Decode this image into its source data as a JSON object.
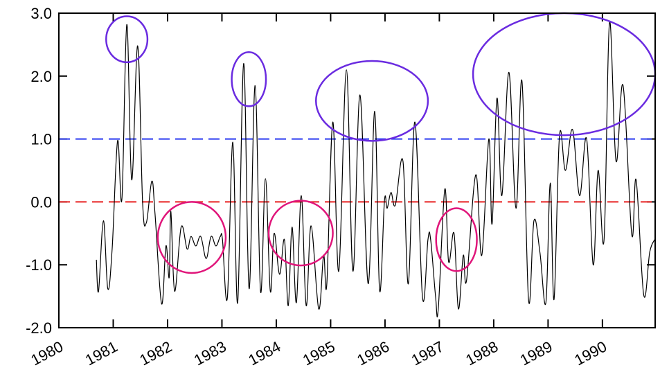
{
  "chart_data": {
    "type": "line",
    "x": [
      1980.69,
      1980.73,
      1980.82,
      1980.9,
      1980.98,
      1981.08,
      1981.16,
      1981.25,
      1981.34,
      1981.45,
      1981.54,
      1981.61,
      1981.71,
      1981.77,
      1981.89,
      1981.97,
      1982.03,
      1982.06,
      1982.13,
      1982.25,
      1982.36,
      1982.43,
      1982.52,
      1982.61,
      1982.71,
      1982.8,
      1982.89,
      1982.97,
      1983.01,
      1983.1,
      1983.2,
      1983.29,
      1983.4,
      1983.5,
      1983.61,
      1983.71,
      1983.8,
      1983.89,
      1983.96,
      1984.06,
      1984.15,
      1984.22,
      1984.29,
      1984.37,
      1984.46,
      1984.55,
      1984.64,
      1984.78,
      1984.87,
      1984.93,
      1985.04,
      1985.15,
      1985.29,
      1985.41,
      1985.54,
      1985.69,
      1985.81,
      1985.9,
      1985.99,
      1986.04,
      1986.11,
      1986.19,
      1986.33,
      1986.43,
      1986.55,
      1986.69,
      1986.79,
      1986.84,
      1986.93,
      1986.98,
      1987.1,
      1987.17,
      1987.27,
      1987.35,
      1987.44,
      1987.5,
      1987.67,
      1987.78,
      1987.91,
      1987.97,
      1988.06,
      1988.15,
      1988.28,
      1988.41,
      1988.52,
      1988.64,
      1988.74,
      1988.85,
      1988.96,
      1989.04,
      1989.11,
      1989.21,
      1989.32,
      1989.45,
      1989.58,
      1989.71,
      1989.83,
      1989.92,
      1990.03,
      1990.13,
      1990.25,
      1990.38,
      1990.54,
      1990.62,
      1990.76,
      1990.87,
      1990.96
    ],
    "series": [
      {
        "color": "#000000",
        "values": [
          -0.92,
          -1.42,
          -0.3,
          -1.38,
          -0.75,
          0.97,
          0.05,
          2.82,
          0.35,
          2.48,
          0.0,
          -0.33,
          0.33,
          -0.2,
          -1.62,
          -0.7,
          -1.2,
          -0.15,
          -1.42,
          -0.4,
          -0.75,
          -0.55,
          -0.7,
          -0.55,
          -0.9,
          -0.55,
          -0.7,
          -0.55,
          -0.6,
          -1.52,
          0.95,
          -1.6,
          2.2,
          -1.38,
          1.85,
          -1.42,
          0.37,
          -1.42,
          -0.5,
          -1.15,
          -0.6,
          -1.65,
          -0.4,
          -1.6,
          0.1,
          -1.65,
          -0.38,
          -1.7,
          -0.85,
          -1.3,
          1.27,
          -1.1,
          2.1,
          -1.1,
          1.7,
          -1.3,
          1.44,
          -1.4,
          0.02,
          -0.1,
          0.15,
          -0.05,
          0.65,
          -1.3,
          1.27,
          -1.52,
          -0.6,
          -0.6,
          -1.5,
          -1.7,
          0.2,
          -0.95,
          -0.5,
          -1.7,
          -0.85,
          -1.25,
          0.43,
          -0.85,
          1.0,
          -0.35,
          1.65,
          0.1,
          2.06,
          -0.1,
          1.92,
          -1.55,
          -0.3,
          -0.8,
          -1.6,
          0.3,
          -1.55,
          1.05,
          0.5,
          1.15,
          0.1,
          1.0,
          -1.0,
          0.5,
          -0.6,
          2.85,
          0.65,
          1.85,
          -0.52,
          0.35,
          -1.48,
          -0.8,
          -0.6
        ]
      }
    ],
    "xlim": [
      1980,
      1990.97
    ],
    "xticks": [
      1980,
      1981,
      1982,
      1983,
      1984,
      1985,
      1986,
      1987,
      1988,
      1989,
      1990
    ],
    "ylim": [
      -2,
      3
    ],
    "yticks": [
      {
        "value": -2,
        "label": "-2.0"
      },
      {
        "value": -1,
        "label": "-1.0"
      },
      {
        "value": 0,
        "label": "0.0"
      },
      {
        "value": 1,
        "label": "1.0"
      },
      {
        "value": 2,
        "label": "2.0"
      },
      {
        "value": 3,
        "label": "3.0"
      }
    ],
    "hlines": [
      {
        "y": 1,
        "color": "#2b3bf0"
      },
      {
        "y": 0,
        "color": "#e82020"
      }
    ],
    "highlights": [
      {
        "xlim": [
          1980.87,
          1981.63
        ],
        "ylim": [
          2.22,
          2.95
        ],
        "color": "#6a2be0"
      },
      {
        "xlim": [
          1983.18,
          1983.81
        ],
        "ylim": [
          1.52,
          2.38
        ],
        "color": "#6a2be0"
      },
      {
        "xlim": [
          1984.73,
          1986.79
        ],
        "ylim": [
          0.97,
          2.24
        ],
        "color": "#6a2be0"
      },
      {
        "xlim": [
          1987.62,
          1990.97
        ],
        "ylim": [
          1.06,
          3.0
        ],
        "color": "#6a2be0"
      },
      {
        "xlim": [
          1981.82,
          1983.07
        ],
        "ylim": [
          -1.13,
          0.0
        ],
        "color": "#e0157a"
      },
      {
        "xlim": [
          1983.86,
          1985.04
        ],
        "ylim": [
          -1.01,
          0.02
        ],
        "color": "#e0157a"
      },
      {
        "xlim": [
          1986.94,
          1987.69
        ],
        "ylim": [
          -1.1,
          -0.1
        ],
        "color": "#e0157a"
      }
    ]
  }
}
